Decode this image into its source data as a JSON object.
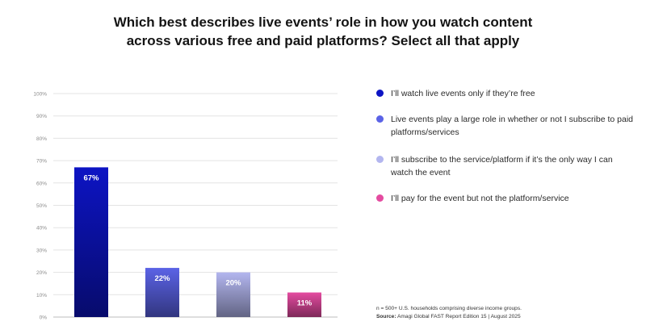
{
  "title_lines": [
    "Which best describes live events’ role in how you watch content",
    "across various free and paid platforms? Select all that apply"
  ],
  "chart_data": {
    "type": "bar",
    "categories": [
      "I’ll watch live events only if they’re free",
      "Live events play a large role in whether or not I subscribe to paid platforms/services",
      "I’ll subscribe to the service/platform if it’s the only way I can watch the event",
      "I’ll pay for the event but not the platform/service"
    ],
    "values": [
      67,
      22,
      20,
      11
    ],
    "value_labels": [
      "67%",
      "22%",
      "20%",
      "11%"
    ],
    "colors": [
      "#0d14c4",
      "#5b63e6",
      "#b3b6ef",
      "#e44ba0"
    ],
    "yticks": [
      "0%",
      "10%",
      "20%",
      "30%",
      "40%",
      "50%",
      "60%",
      "70%",
      "80%",
      "90%",
      "100%"
    ],
    "ylim": [
      0,
      100
    ],
    "grid": true,
    "legend_position": "right",
    "title": "",
    "xlabel": "",
    "ylabel": ""
  },
  "footnote": {
    "sample": "n = 500+ U.S. households comprising diverse income groups.",
    "source_label": "Source:",
    "source_text": " Amagi Global FAST Report Edition 15 | August 2025"
  }
}
